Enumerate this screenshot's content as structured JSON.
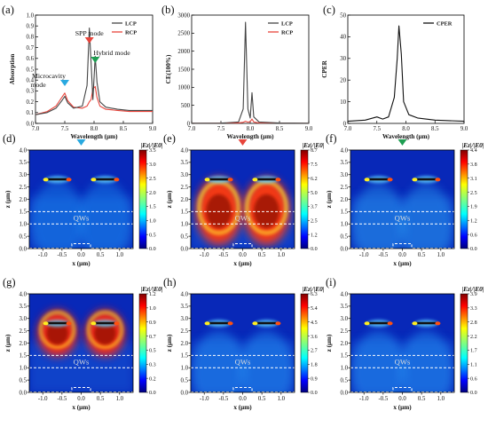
{
  "chart_data": [
    {
      "panel": "(a)",
      "type": "line",
      "xlabel": "Wavelength (μm)",
      "ylabel": "Absorption",
      "xlim": [
        7.0,
        9.0
      ],
      "ylim": [
        0.0,
        1.0
      ],
      "xticks": [
        "7.0",
        "7.5",
        "8.0",
        "8.5",
        "9.0"
      ],
      "yticks": [
        "0.0",
        "0.1",
        "0.2",
        "0.3",
        "0.4",
        "0.5",
        "0.6",
        "0.7",
        "0.8",
        "0.9",
        "1.0"
      ],
      "legend_position": "top-right",
      "series": [
        {
          "name": "LCP",
          "color": "#444444",
          "x": [
            7.0,
            7.2,
            7.35,
            7.45,
            7.5,
            7.55,
            7.65,
            7.8,
            7.88,
            7.92,
            7.95,
            7.98,
            8.02,
            8.05,
            8.1,
            8.2,
            8.4,
            8.6,
            8.8,
            9.0
          ],
          "y": [
            0.08,
            0.1,
            0.14,
            0.21,
            0.25,
            0.19,
            0.14,
            0.16,
            0.35,
            0.88,
            0.55,
            0.22,
            0.62,
            0.38,
            0.2,
            0.15,
            0.13,
            0.12,
            0.12,
            0.12
          ]
        },
        {
          "name": "RCP",
          "color": "#e8453c",
          "x": [
            7.0,
            7.2,
            7.35,
            7.45,
            7.5,
            7.55,
            7.65,
            7.8,
            7.88,
            7.92,
            7.95,
            7.98,
            8.02,
            8.05,
            8.1,
            8.2,
            8.4,
            8.6,
            8.8,
            9.0
          ],
          "y": [
            0.08,
            0.11,
            0.16,
            0.24,
            0.28,
            0.21,
            0.15,
            0.14,
            0.16,
            0.2,
            0.22,
            0.32,
            0.34,
            0.24,
            0.16,
            0.13,
            0.12,
            0.11,
            0.11,
            0.11
          ]
        }
      ],
      "annotations": [
        {
          "text": "SPP mode",
          "x": 7.92,
          "marker_color": "#e8453c"
        },
        {
          "text": "Hybrid mode",
          "x": 8.02,
          "marker_color": "#1e9e52"
        },
        {
          "text": "Microcavity",
          "x": 7.5,
          "marker_color": "#29a9e0"
        },
        {
          "text": "mode",
          "x": 7.5
        }
      ]
    },
    {
      "panel": "(b)",
      "type": "line",
      "xlabel": "Wavelength (μm)",
      "ylabel": "CE(100%)",
      "xlim": [
        7.0,
        9.0
      ],
      "ylim": [
        0,
        3000
      ],
      "xticks": [
        "7.0",
        "7.5",
        "8.0",
        "8.5",
        "9.0"
      ],
      "yticks": [
        "0",
        "500",
        "1000",
        "1500",
        "2000",
        "2500",
        "3000"
      ],
      "legend_position": "top-right",
      "series": [
        {
          "name": "LCP",
          "color": "#444444",
          "x": [
            7.0,
            7.5,
            7.8,
            7.88,
            7.92,
            7.96,
            8.0,
            8.03,
            8.06,
            8.15,
            8.5,
            9.0
          ],
          "y": [
            5,
            8,
            40,
            400,
            2800,
            400,
            150,
            850,
            180,
            40,
            10,
            5
          ]
        },
        {
          "name": "RCP",
          "color": "#e8453c",
          "x": [
            7.0,
            7.5,
            7.8,
            7.88,
            7.92,
            7.96,
            8.0,
            8.03,
            8.06,
            8.15,
            8.5,
            9.0
          ],
          "y": [
            3,
            5,
            15,
            30,
            60,
            35,
            50,
            120,
            40,
            12,
            5,
            3
          ]
        }
      ]
    },
    {
      "panel": "(c)",
      "type": "line",
      "xlabel": "Wavelength (μm)",
      "ylabel": "CPER",
      "xlim": [
        7.0,
        9.0
      ],
      "ylim": [
        0,
        50
      ],
      "xticks": [
        "7.0",
        "7.5",
        "8.0",
        "8.5",
        "9.0"
      ],
      "yticks": [
        "0",
        "10",
        "20",
        "30",
        "40",
        "50"
      ],
      "legend_position": "top-right",
      "series": [
        {
          "name": "CPER",
          "color": "#111111",
          "x": [
            7.0,
            7.3,
            7.5,
            7.6,
            7.7,
            7.8,
            7.85,
            7.88,
            7.92,
            7.96,
            8.05,
            8.2,
            8.5,
            9.0
          ],
          "y": [
            1,
            1.5,
            3,
            2,
            3,
            12,
            30,
            45,
            32,
            10,
            4,
            2.5,
            1.5,
            1
          ]
        }
      ]
    },
    {
      "panel": "(d)",
      "type": "heatmap",
      "xlabel": "x (μm)",
      "ylabel": "z (μm)",
      "xticks": [
        "-1.0",
        "-0.5",
        "0.0",
        "0.5",
        "1.0"
      ],
      "yticks": [
        "0.0",
        "0.5",
        "1.0",
        "1.5",
        "2.0",
        "2.5",
        "3.0",
        "3.5",
        "4.0"
      ],
      "colorbar_label": "|Ez|/|E0|",
      "colorbar_ticks": [
        "0.0",
        "0.5",
        "1.0",
        "1.5",
        "2.0",
        "2.5",
        "3.0",
        "3.5"
      ],
      "overlay_label": "QWs",
      "mode_marker_color": "#29a9e0"
    },
    {
      "panel": "(e)",
      "type": "heatmap",
      "xlabel": "x (μm)",
      "ylabel": "z (μm)",
      "xticks": [
        "-1.0",
        "-0.5",
        "0.0",
        "0.5",
        "1.0"
      ],
      "yticks": [
        "0.0",
        "0.5",
        "1.0",
        "1.5",
        "2.0",
        "2.5",
        "3.0",
        "3.5",
        "4.0"
      ],
      "colorbar_label": "|Ez|/|E0|",
      "colorbar_ticks": [
        "0.0",
        "1.2",
        "2.5",
        "3.7",
        "5.0",
        "6.2",
        "7.5",
        "8.7"
      ],
      "overlay_label": "QWs",
      "mode_marker_color": "#e8453c"
    },
    {
      "panel": "(f)",
      "type": "heatmap",
      "xlabel": "x (μm)",
      "ylabel": "z (μm)",
      "xticks": [
        "-1.0",
        "-0.5",
        "0.0",
        "0.5",
        "1.0"
      ],
      "yticks": [
        "0.0",
        "0.5",
        "1.0",
        "1.5",
        "2.0",
        "2.5",
        "3.0",
        "3.5",
        "4.0"
      ],
      "colorbar_label": "|Ez|/|E0|",
      "colorbar_ticks": [
        "0.0",
        "0.6",
        "1.2",
        "1.9",
        "2.5",
        "3.1",
        "3.8",
        "4.4"
      ],
      "overlay_label": "QWs",
      "mode_marker_color": "#1e9e52"
    },
    {
      "panel": "(g)",
      "type": "heatmap",
      "xlabel": "x (μm)",
      "ylabel": "z (μm)",
      "xticks": [
        "-1.0",
        "-0.5",
        "0.0",
        "0.5",
        "1.0"
      ],
      "yticks": [
        "0.0",
        "0.5",
        "1.0",
        "1.5",
        "2.0",
        "2.5",
        "3.0",
        "3.5",
        "4.0"
      ],
      "colorbar_label": "|Ez|/|E0|",
      "colorbar_ticks": [
        "0.0",
        "0.2",
        "0.3",
        "0.5",
        "0.7",
        "0.9",
        "1.0",
        "1.2"
      ],
      "overlay_label": "QWs"
    },
    {
      "panel": "(h)",
      "type": "heatmap",
      "xlabel": "x (μm)",
      "ylabel": "z (μm)",
      "xticks": [
        "-1.0",
        "-0.5",
        "0.0",
        "0.5",
        "1.0"
      ],
      "yticks": [
        "0.0",
        "0.5",
        "1.0",
        "1.5",
        "2.0",
        "2.5",
        "3.0",
        "3.5",
        "4.0"
      ],
      "colorbar_label": "|Ez|/|E0|",
      "colorbar_ticks": [
        "0.0",
        "0.9",
        "1.8",
        "2.7",
        "3.6",
        "4.5",
        "5.4",
        "6.3"
      ],
      "overlay_label": "QWs"
    },
    {
      "panel": "(i)",
      "type": "heatmap",
      "xlabel": "x (μm)",
      "ylabel": "z (μm)",
      "xticks": [
        "-1.0",
        "-0.5",
        "0.0",
        "0.5",
        "1.0"
      ],
      "yticks": [
        "0.0",
        "0.5",
        "1.0",
        "1.5",
        "2.0",
        "2.5",
        "3.0",
        "3.5",
        "4.0"
      ],
      "colorbar_label": "|Ez|/|E0|",
      "colorbar_ticks": [
        "0.0",
        "0.6",
        "1.1",
        "1.7",
        "2.2",
        "2.8",
        "3.3",
        "3.9"
      ],
      "overlay_label": "QWs"
    }
  ]
}
